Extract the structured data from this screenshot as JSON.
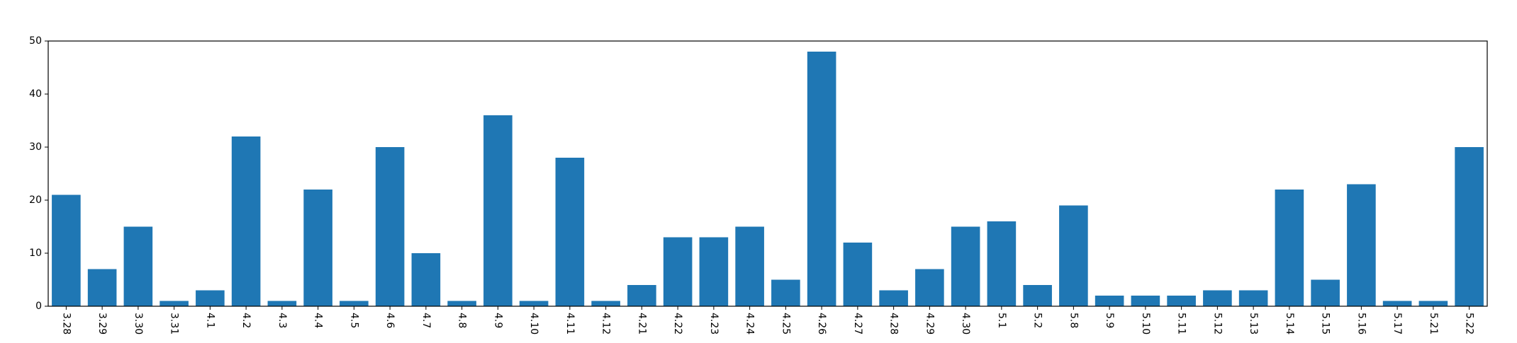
{
  "chart_data": {
    "type": "bar",
    "title": "",
    "xlabel": "",
    "ylabel": "",
    "categories": [
      "3.28",
      "3.29",
      "3.30",
      "3.31",
      "4.1",
      "4.2",
      "4.3",
      "4.4",
      "4.5",
      "4.6",
      "4.7",
      "4.8",
      "4.9",
      "4.10",
      "4.11",
      "4.12",
      "4.21",
      "4.22",
      "4.23",
      "4.24",
      "4.25",
      "4.26",
      "4.27",
      "4.28",
      "4.29",
      "4.30",
      "5.1",
      "5.2",
      "5.8",
      "5.9",
      "5.10",
      "5.11",
      "5.12",
      "5.13",
      "5.14",
      "5.15",
      "5.16",
      "5.17",
      "5.21",
      "5.22"
    ],
    "values": [
      21,
      7,
      15,
      1,
      3,
      32,
      1,
      22,
      1,
      30,
      10,
      1,
      36,
      1,
      28,
      1,
      4,
      13,
      13,
      15,
      5,
      48,
      12,
      3,
      7,
      15,
      16,
      4,
      19,
      2,
      2,
      2,
      3,
      3,
      22,
      5,
      23,
      1,
      1,
      30
    ],
    "ylim": [
      0,
      50
    ],
    "yticks": [
      0,
      10,
      20,
      30,
      40,
      50
    ],
    "bar_color": "#1f77b4",
    "grid": false,
    "legend": "none",
    "x_tick_rotation": "vertical"
  }
}
